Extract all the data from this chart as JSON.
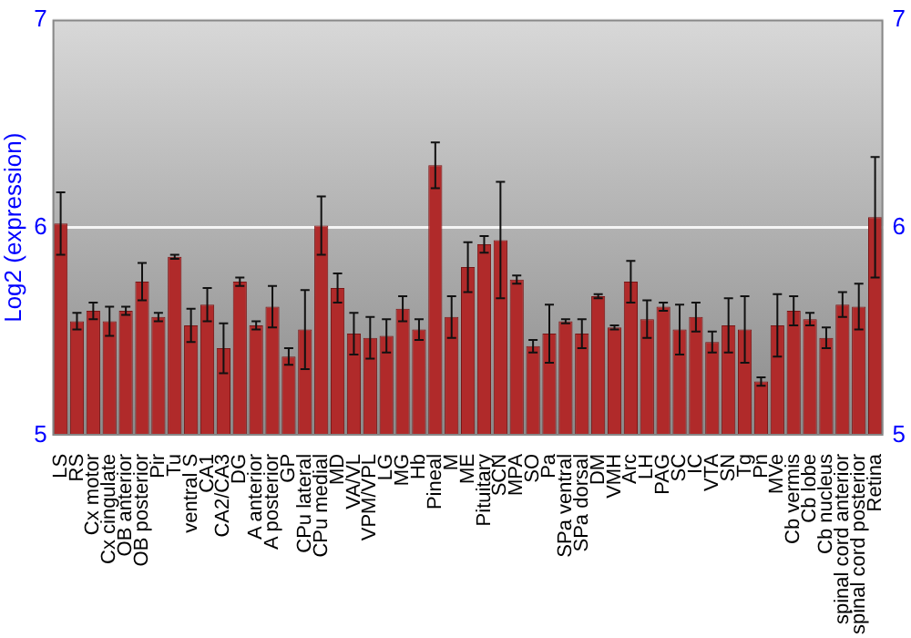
{
  "chart_data": {
    "type": "bar",
    "ylabel": "Log2 (expression)",
    "categories": [
      "LS",
      "RS",
      "Cx motor",
      "Cx cingulate",
      "OB anterior",
      "OB posterior",
      "Pir",
      "Tu",
      "ventral S",
      "CA1",
      "CA2/CA3",
      "DG",
      "A anterior",
      "A posterior",
      "GP",
      "CPu lateral",
      "CPu medial",
      "MD",
      "VA/VL",
      "VPM/VPL",
      "LG",
      "MG",
      "Hb",
      "Pineal",
      "M",
      "ME",
      "Pituitary",
      "SCN",
      "MPA",
      "SO",
      "Pa",
      "SPa ventral",
      "SPa dorsal",
      "DM",
      "VMH",
      "Arc",
      "LH",
      "PAG",
      "SC",
      "IC",
      "VTA",
      "SN",
      "Tg",
      "Pn",
      "MVe",
      "Cb vermis",
      "Cb lobe",
      "Cb nucleus",
      "spinal cord anterior",
      "spinal cord posterior",
      "Retina"
    ],
    "values": [
      6.02,
      5.55,
      5.6,
      5.55,
      5.6,
      5.74,
      5.57,
      5.86,
      5.53,
      5.63,
      5.42,
      5.74,
      5.53,
      5.62,
      5.38,
      5.51,
      6.01,
      5.71,
      5.49,
      5.47,
      5.48,
      5.61,
      5.51,
      6.3,
      5.57,
      5.81,
      5.92,
      5.94,
      5.75,
      5.43,
      5.49,
      5.55,
      5.49,
      5.67,
      5.52,
      5.74,
      5.56,
      5.62,
      5.51,
      5.57,
      5.45,
      5.53,
      5.51,
      5.26,
      5.53,
      5.6,
      5.56,
      5.47,
      5.63,
      5.62,
      6.05
    ],
    "errors": [
      0.15,
      0.04,
      0.04,
      0.07,
      0.02,
      0.09,
      0.02,
      0.01,
      0.08,
      0.08,
      0.12,
      0.02,
      0.02,
      0.1,
      0.04,
      0.19,
      0.14,
      0.07,
      0.1,
      0.1,
      0.08,
      0.06,
      0.05,
      0.11,
      0.1,
      0.12,
      0.04,
      0.28,
      0.02,
      0.03,
      0.14,
      0.01,
      0.07,
      0.01,
      0.01,
      0.1,
      0.09,
      0.02,
      0.12,
      0.07,
      0.05,
      0.13,
      0.16,
      0.02,
      0.15,
      0.07,
      0.03,
      0.05,
      0.06,
      0.11,
      0.29
    ],
    "color": "#b02a2a",
    "ylim": [
      5,
      7
    ],
    "yticks": [
      5,
      6,
      7
    ],
    "y2lim": [
      5,
      7
    ],
    "y2ticks": [
      5,
      6,
      7
    ],
    "grid": "y",
    "legend": false
  }
}
